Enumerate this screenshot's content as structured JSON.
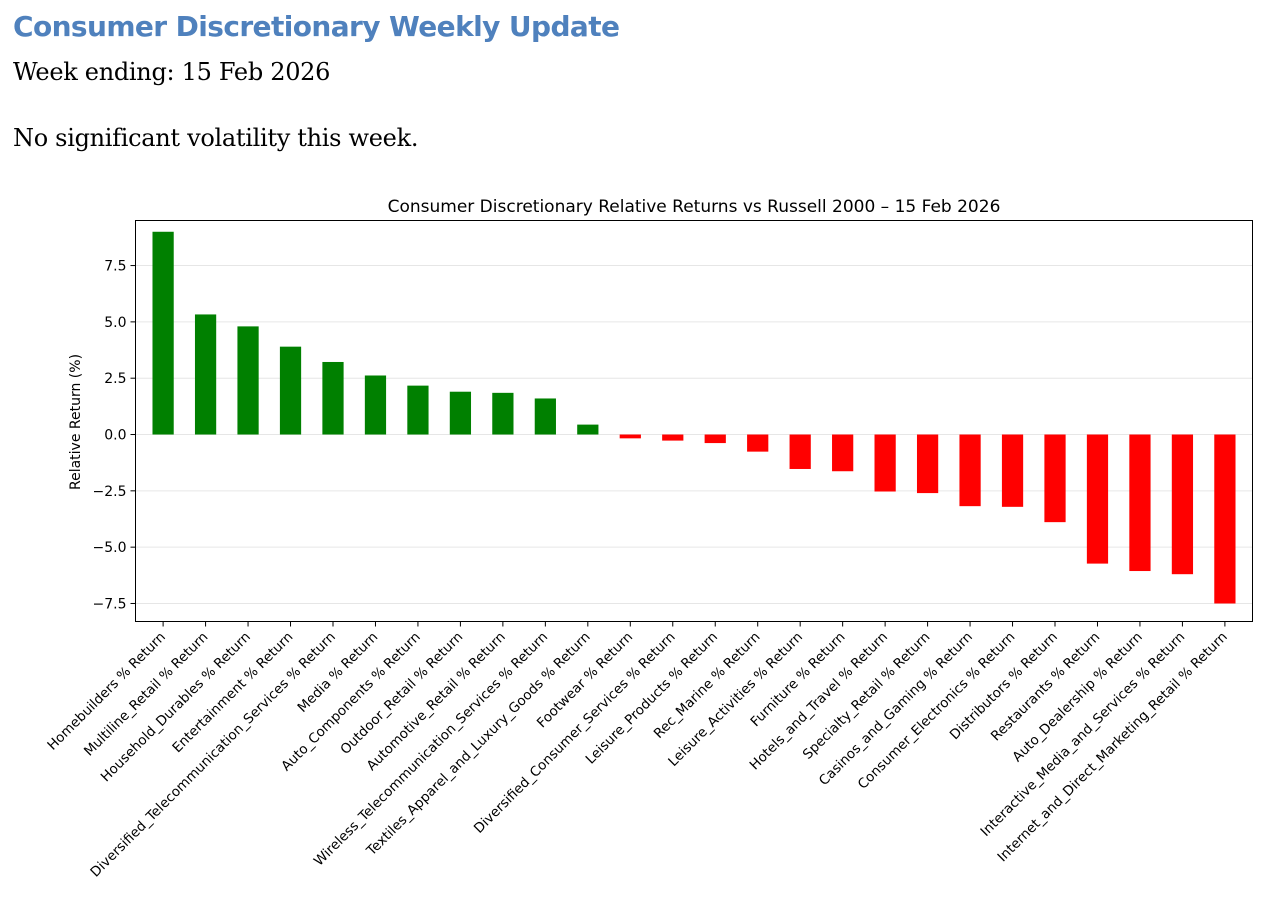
{
  "header": {
    "title": "Consumer Discretionary Weekly Update",
    "week_line": "Week ending: 15 Feb 2026",
    "note": "No significant volatility this week."
  },
  "colors": {
    "title": "#4f81bd",
    "positive": "#008000",
    "negative": "#ff0000",
    "grid": "#e6e6e6"
  },
  "chart_data": {
    "type": "bar",
    "title": "Consumer Discretionary Relative Returns vs Russell 2000 – 15 Feb 2026",
    "xlabel": "",
    "ylabel": "Relative Return (%)",
    "ylim": [
      -8.3,
      9.5
    ],
    "yticks": [
      7.5,
      5.0,
      2.5,
      0.0,
      -2.5,
      -5.0,
      -7.5
    ],
    "ytick_labels": [
      "7.5",
      "5.0",
      "2.5",
      "0.0",
      "−2.5",
      "−5.0",
      "−7.5"
    ],
    "grid": "horizontal",
    "categories": [
      "Homebuilders % Return",
      "Multiline_Retail % Return",
      "Household_Durables % Return",
      "Entertainment % Return",
      "Diversified_Telecommunication_Services % Return",
      "Media % Return",
      "Auto_Components % Return",
      "Outdoor_Retail % Return",
      "Automotive_Retail % Return",
      "Wireless_Telecommunication_Services % Return",
      "Textiles_Apparel_and_Luxury_Goods % Return",
      "Footwear % Return",
      "Diversified_Consumer_Services % Return",
      "Leisure_Products % Return",
      "Rec_Marine % Return",
      "Leisure_Activities % Return",
      "Furniture % Return",
      "Hotels_and_Travel % Return",
      "Specialty_Retail % Return",
      "Casinos_and_Gaming % Return",
      "Consumer_Electronics % Return",
      "Distributors % Return",
      "Restaurants % Return",
      "Auto_Dealership % Return",
      "Interactive_Media_and_Services % Return",
      "Internet_and_Direct_Marketing_Retail % Return"
    ],
    "values": [
      9.0,
      5.33,
      4.8,
      3.9,
      3.22,
      2.62,
      2.17,
      1.9,
      1.85,
      1.6,
      0.44,
      -0.17,
      -0.27,
      -0.38,
      -0.76,
      -1.53,
      -1.63,
      -2.53,
      -2.6,
      -3.18,
      -3.21,
      -3.89,
      -5.73,
      -6.06,
      -6.2,
      -7.5
    ]
  }
}
